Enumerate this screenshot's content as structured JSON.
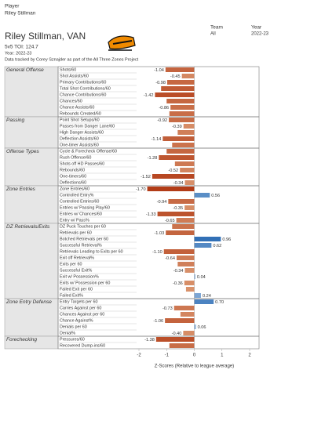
{
  "header": {
    "player_label": "Player",
    "player": "Riley Stillman",
    "team_label": "Team",
    "team": "All",
    "year_label": "Year",
    "year": "2022-23",
    "title": "Riley Stillman, VAN",
    "toi": "5v5 TOI: 124.7",
    "year_line": "Year: 2022-23",
    "note": "Data tracked by Corey Sznajder as part of the All Three Zones Project"
  },
  "chart_data": {
    "type": "barh",
    "xlabel": "Z-Scores (Relative to league average)",
    "xlim": [
      -2,
      2
    ],
    "xticks": [
      -2,
      -1,
      0,
      1,
      2
    ],
    "colors": {
      "negative": "#b23c17",
      "positive": "#2e6db4"
    },
    "groups": [
      {
        "name": "General Offense",
        "categories": [
          "Shots/60",
          "Shot Assists/60",
          "Primary Contributions/60",
          "Total Shot Contributions/60",
          "Chance Contributions/60",
          "Chances/60",
          "Chance Assists/60",
          "Rebounds Created/60"
        ],
        "values": [
          -1.04,
          -0.45,
          -0.98,
          -1.2,
          -1.42,
          -1.0,
          -0.86,
          -0.9
        ],
        "value_labels": [
          "-1.04",
          "-0.45",
          "-0.98",
          null,
          "-1.42",
          null,
          "-0.86",
          null
        ]
      },
      {
        "name": "Passing",
        "categories": [
          "Point Shot Setups/60",
          "Passes from Danger Lane/60",
          "High Danger Assists/60",
          "Deflection Assists/60",
          "One-timer Assists/60"
        ],
        "values": [
          -0.92,
          -0.39,
          -0.6,
          -1.14,
          -0.8
        ],
        "value_labels": [
          "-0.92",
          "-0.39",
          null,
          "-1.14",
          null
        ]
      },
      {
        "name": "Offense Types",
        "categories": [
          "Cycle & Forecheck Offense/60",
          "Rush Offense/60",
          "Shots off HD Passes/60",
          "Rebounds/60",
          "One-timers/60",
          "Deflections/60"
        ],
        "values": [
          -1.0,
          -1.28,
          -0.7,
          -0.52,
          -1.52,
          -0.34
        ],
        "value_labels": [
          null,
          "-1.28",
          null,
          "-0.52",
          "-1.52",
          "-0.34"
        ]
      },
      {
        "name": "Zone Entries",
        "categories": [
          "Zone Entries/60",
          "Controlled Entry%",
          "Controlled Entries/60",
          "Entries w/ Passing Play/60",
          "Entries w/ Chances/60",
          "Entry w/ Pass%"
        ],
        "values": [
          -1.7,
          0.56,
          -0.94,
          -0.35,
          -1.33,
          -0.65
        ],
        "value_labels": [
          "-1.70",
          "0.56",
          "-0.94",
          "-0.35",
          "-1.33",
          "-0.65"
        ]
      },
      {
        "name": "DZ Retrievals/Exits",
        "categories": [
          "DZ Puck Touches per 60",
          "Retrievals per 60",
          "Botched Retrievals per 60",
          "Successful Retrieval%",
          "Retrievals Leading to Exits per 60",
          "Exit off Retrieval%",
          "Exits per 60",
          "Successful Exit%",
          "Exit w/ Possession%",
          "Exits w/ Possession per 60",
          "Failed Exit per 60",
          "Failed Exit%"
        ],
        "values": [
          -0.8,
          -1.03,
          0.96,
          0.62,
          -1.1,
          -0.64,
          -0.6,
          -0.34,
          0.04,
          -0.36,
          -0.3,
          0.24
        ],
        "value_labels": [
          null,
          "-1.03",
          "0.96",
          "0.62",
          "-1.10",
          "-0.64",
          null,
          "-0.34",
          "0.04",
          "-0.36",
          null,
          "0.24"
        ]
      },
      {
        "name": "Zone Entry Defense",
        "categories": [
          "Entry Targets per 60",
          "Carries Against per 60",
          "Chances Against per 60",
          "Chance Against%",
          "Denials per 60",
          "Denial%"
        ],
        "values": [
          0.7,
          -0.73,
          -0.5,
          -1.06,
          0.06,
          -0.4
        ],
        "value_labels": [
          "0.70",
          "-0.73",
          null,
          "-1.06",
          "0.06",
          "-0.40"
        ]
      },
      {
        "name": "Forechecking",
        "categories": [
          "Pressures/60",
          "Recovered Dump-ins/60"
        ],
        "values": [
          -1.38,
          -0.9
        ],
        "value_labels": [
          "-1.38",
          null
        ]
      }
    ]
  }
}
